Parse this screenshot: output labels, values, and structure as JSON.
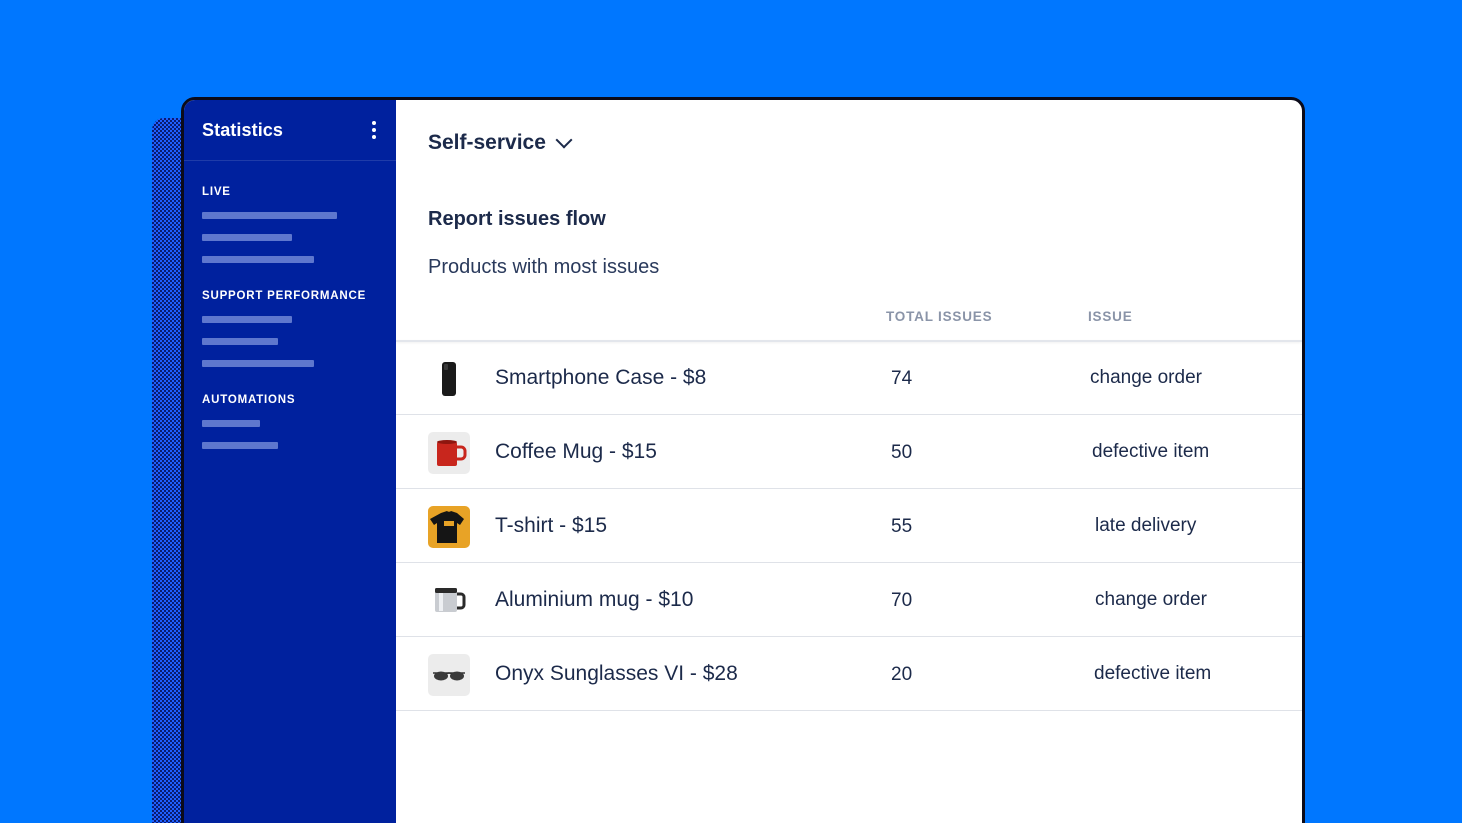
{
  "sidebar": {
    "title": "Statistics",
    "sections": [
      {
        "label": "LIVE",
        "bars": 3
      },
      {
        "label": "SUPPORT PERFORMANCE",
        "bars": 3
      },
      {
        "label": "AUTOMATIONS",
        "bars": 2
      }
    ]
  },
  "main": {
    "dropdown_label": "Self-service",
    "report_title": "Report issues flow",
    "report_subtitle": "Products with most issues",
    "table": {
      "columns": [
        "TOTAL ISSUES",
        "ISSUE"
      ],
      "rows": [
        {
          "product": "Smartphone Case - $8",
          "total": "74",
          "issue": "change order",
          "icon": "phone-case-icon"
        },
        {
          "product": "Coffee Mug - $15",
          "total": "50",
          "issue": "defective item",
          "icon": "coffee-mug-icon"
        },
        {
          "product": "T-shirt - $15",
          "total": "55",
          "issue": "late delivery",
          "icon": "tshirt-icon"
        },
        {
          "product": "Aluminium mug - $10",
          "total": "70",
          "issue": "change order",
          "icon": "aluminium-mug-icon"
        },
        {
          "product": "Onyx Sunglasses VI - $28",
          "total": "20",
          "issue": "defective item",
          "icon": "sunglasses-icon"
        }
      ]
    }
  },
  "colors": {
    "background": "#0077FF",
    "sidebar": "#00219E",
    "text": "#1C2A4A",
    "header_text": "#8A94A8"
  }
}
